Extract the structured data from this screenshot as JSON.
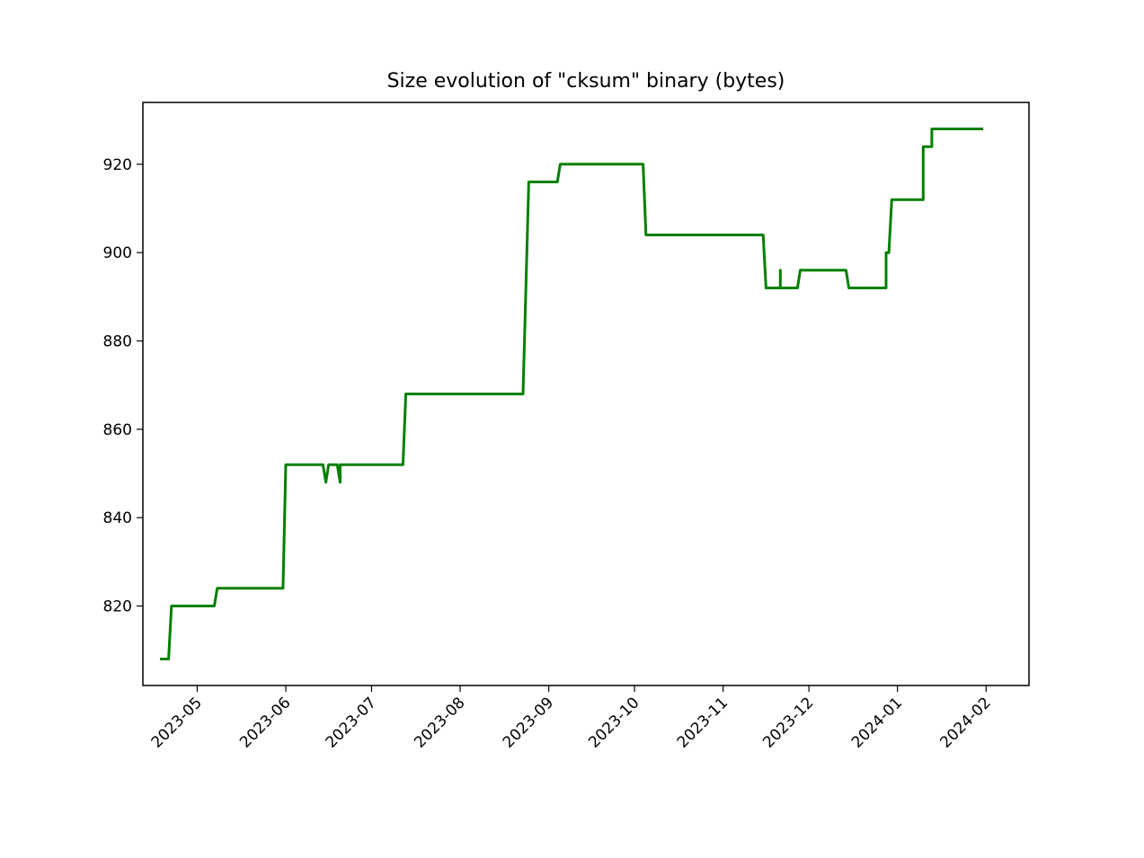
{
  "chart_data": {
    "type": "line",
    "title": "Size evolution of \"cksum\" binary (bytes)",
    "xlabel": "",
    "ylabel": "",
    "x_axis_type": "date",
    "xlim": [
      "2023-04-12",
      "2024-02-16"
    ],
    "ylim": [
      802,
      934
    ],
    "grid": false,
    "legend": "none",
    "yticks": [
      820,
      840,
      860,
      880,
      900,
      920
    ],
    "xticks": [
      "2023-05-01",
      "2023-06-01",
      "2023-07-01",
      "2023-08-01",
      "2023-09-01",
      "2023-10-01",
      "2023-11-01",
      "2023-12-01",
      "2024-01-01",
      "2024-02-01"
    ],
    "xtick_labels": [
      "2023-05",
      "2023-06",
      "2023-07",
      "2023-08",
      "2023-09",
      "2023-10",
      "2023-11",
      "2023-12",
      "2024-01",
      "2024-02"
    ],
    "color": "#008000",
    "series": [
      {
        "points": [
          [
            "2023-04-18",
            808
          ],
          [
            "2023-04-21",
            808
          ],
          [
            "2023-04-22",
            820
          ],
          [
            "2023-05-07",
            820
          ],
          [
            "2023-05-08",
            824
          ],
          [
            "2023-05-31",
            824
          ],
          [
            "2023-06-01",
            852
          ],
          [
            "2023-06-14",
            852
          ],
          [
            "2023-06-15",
            848
          ],
          [
            "2023-06-16",
            852
          ],
          [
            "2023-06-19",
            852
          ],
          [
            "2023-06-20",
            848
          ],
          [
            "2023-06-20",
            852
          ],
          [
            "2023-07-12",
            852
          ],
          [
            "2023-07-13",
            868
          ],
          [
            "2023-08-23",
            868
          ],
          [
            "2023-08-25",
            916
          ],
          [
            "2023-09-04",
            916
          ],
          [
            "2023-09-05",
            920
          ],
          [
            "2023-10-04",
            920
          ],
          [
            "2023-10-05",
            904
          ],
          [
            "2023-11-15",
            904
          ],
          [
            "2023-11-16",
            892
          ],
          [
            "2023-11-21",
            892
          ],
          [
            "2023-11-21",
            896
          ],
          [
            "2023-11-21",
            892
          ],
          [
            "2023-11-27",
            892
          ],
          [
            "2023-11-28",
            896
          ],
          [
            "2023-12-14",
            896
          ],
          [
            "2023-12-15",
            892
          ],
          [
            "2023-12-28",
            892
          ],
          [
            "2023-12-28",
            900
          ],
          [
            "2023-12-29",
            900
          ],
          [
            "2023-12-30",
            912
          ],
          [
            "2024-01-10",
            912
          ],
          [
            "2024-01-10",
            924
          ],
          [
            "2024-01-13",
            924
          ],
          [
            "2024-01-13",
            928
          ],
          [
            "2024-01-31",
            928
          ]
        ]
      }
    ]
  }
}
